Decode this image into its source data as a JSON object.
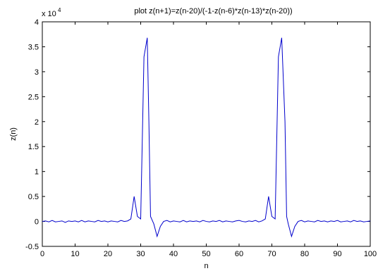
{
  "chart_data": {
    "type": "line",
    "title": "plot z(n+1)=z(n-20)/(-1-z(n-6)*z(n-13)*z(n-20))",
    "xlabel": "n",
    "ylabel": "z(n)",
    "y_multiplier_label": "x 10",
    "y_multiplier_exponent": "4",
    "xlim": [
      0,
      100
    ],
    "ylim": [
      -0.5,
      4
    ],
    "xticks": [
      "0",
      "10",
      "20",
      "30",
      "40",
      "50",
      "60",
      "70",
      "80",
      "90",
      "100"
    ],
    "yticks": [
      "-0.5",
      "0",
      "0.5",
      "1",
      "1.5",
      "2",
      "2.5",
      "3",
      "3.5",
      "4"
    ],
    "grid": false,
    "series_color": "#0000cc",
    "series": [
      {
        "x": [
          0,
          1,
          2,
          3,
          4,
          5,
          6,
          7,
          8,
          9,
          10,
          11,
          12,
          13,
          14,
          15,
          16,
          17,
          18,
          19,
          20,
          21,
          22,
          23,
          24,
          25,
          26,
          27,
          28,
          29,
          30,
          31,
          32,
          32.5,
          33,
          34,
          35,
          36,
          37,
          38,
          39,
          40,
          41,
          42,
          43,
          44,
          45,
          46,
          47,
          48,
          49,
          50,
          51,
          52,
          53,
          54,
          55,
          56,
          57,
          58,
          59,
          60,
          61,
          62,
          63,
          64,
          65,
          66,
          67,
          68,
          69,
          70,
          71,
          72,
          73,
          74,
          74.5,
          75,
          76,
          77,
          78,
          79,
          80,
          81,
          82,
          83,
          84,
          85,
          86,
          87,
          88,
          89,
          90,
          91,
          92,
          93,
          94,
          95,
          96,
          97,
          98,
          99,
          100
        ],
        "values": [
          0.0,
          0.01,
          -0.01,
          0.02,
          -0.01,
          0.0,
          0.01,
          -0.02,
          0.01,
          0.0,
          0.01,
          -0.01,
          0.02,
          -0.01,
          0.01,
          0.0,
          -0.01,
          0.02,
          0.0,
          0.01,
          -0.01,
          0.01,
          0.0,
          -0.01,
          0.02,
          0.0,
          0.01,
          0.05,
          0.5,
          0.1,
          0.05,
          3.3,
          3.68,
          2.0,
          0.1,
          -0.05,
          -0.3,
          -0.1,
          0.0,
          0.02,
          -0.01,
          0.01,
          0.0,
          -0.01,
          0.02,
          -0.01,
          0.01,
          0.0,
          0.01,
          -0.01,
          0.02,
          0.0,
          -0.01,
          0.01,
          0.0,
          0.02,
          -0.01,
          0.01,
          0.0,
          -0.01,
          0.01,
          0.02,
          0.0,
          -0.01,
          0.01,
          0.0,
          0.02,
          -0.01,
          0.01,
          0.05,
          0.5,
          0.1,
          0.05,
          3.3,
          3.68,
          2.0,
          0.1,
          -0.05,
          -0.3,
          -0.1,
          0.0,
          0.02,
          -0.01,
          0.01,
          0.0,
          -0.01,
          0.02,
          0.0,
          0.01,
          -0.01,
          0.01,
          0.0,
          0.02,
          -0.01,
          0.0,
          0.01,
          -0.01,
          0.02,
          0.0,
          0.01,
          -0.01,
          0.0,
          0.01
        ]
      }
    ]
  }
}
